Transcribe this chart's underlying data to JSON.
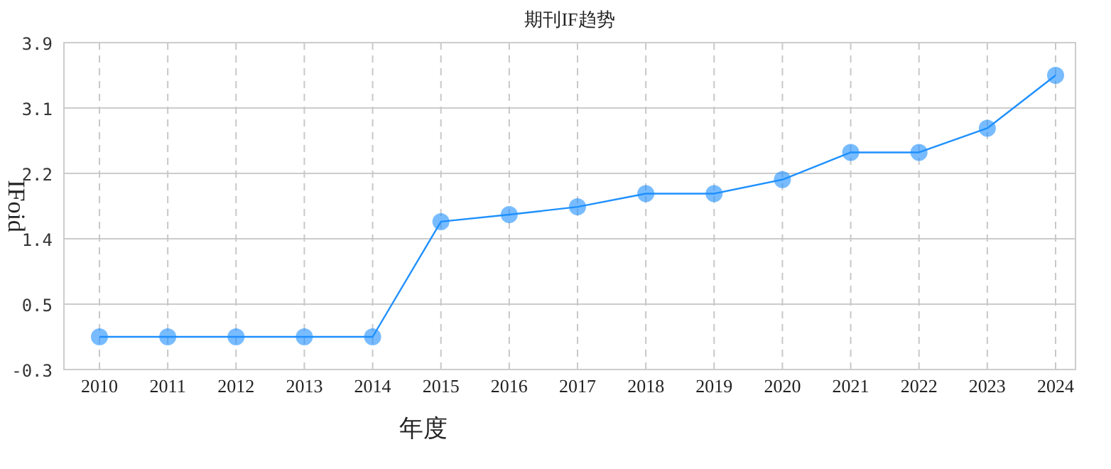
{
  "chart_data": {
    "type": "line",
    "title": "期刊IF趋势",
    "xlabel": "年度",
    "ylabel": "IFoid",
    "categories": [
      "2010",
      "2011",
      "2012",
      "2013",
      "2014",
      "2015",
      "2016",
      "2017",
      "2018",
      "2019",
      "2020",
      "2021",
      "2022",
      "2023",
      "2024"
    ],
    "series": [
      {
        "color": "#1e90ff",
        "values": [
          0.12,
          0.12,
          0.12,
          0.12,
          0.12,
          1.6,
          1.69,
          1.79,
          1.96,
          1.96,
          2.14,
          2.49,
          2.49,
          2.8,
          3.48
        ]
      }
    ],
    "ylim": [
      -0.3,
      3.9
    ],
    "yticks": [
      -0.3,
      {
        "value": 0.54,
        "label": "0.5"
      },
      {
        "value": 1.38,
        "label": "1.4"
      },
      {
        "value": 2.22,
        "label": "2.2"
      },
      {
        "value": 3.06,
        "label": "3.1"
      },
      3.9
    ],
    "grid": true,
    "marker": "circle",
    "line_style": "solid"
  }
}
